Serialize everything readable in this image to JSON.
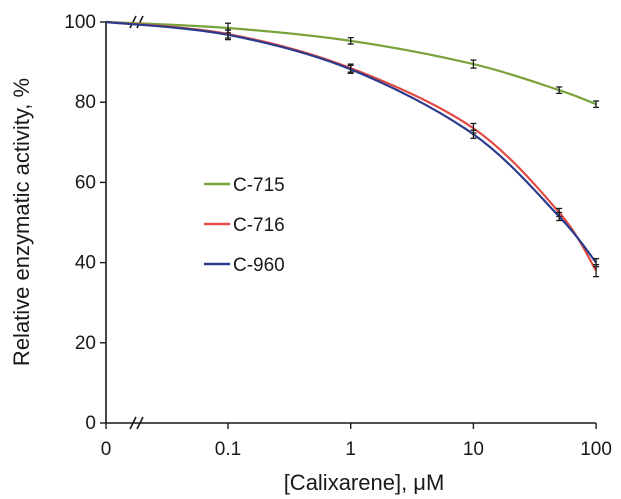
{
  "chart_data": {
    "type": "line",
    "xlabel": "[Calixarene], μM",
    "ylabel": "Relative enzymatic activity, %",
    "x_scale": "log, with 0 shown before an axis break",
    "x_ticks": [
      "0",
      "0.1",
      "1",
      "10",
      "100"
    ],
    "y_ticks": [
      "0",
      "20",
      "40",
      "60",
      "80",
      "100"
    ],
    "ylim": [
      0,
      100
    ],
    "x": [
      0,
      0.1,
      1,
      10,
      50,
      100
    ],
    "legend_position": "center-left",
    "series": [
      {
        "name": "C-715",
        "color": "#78a23a",
        "values": [
          100,
          98.5,
          95.3,
          89.5,
          83.0,
          79.5
        ],
        "errors": [
          0,
          1.2,
          0.8,
          1.0,
          0.8,
          0.8
        ]
      },
      {
        "name": "C-716",
        "color": "#e04a42",
        "values": [
          100,
          97.0,
          88.5,
          73.5,
          52.5,
          38.0
        ],
        "errors": [
          0,
          1.0,
          1.0,
          1.2,
          1.0,
          1.5
        ]
      },
      {
        "name": "C-960",
        "color": "#2c3a8c",
        "values": [
          100,
          96.8,
          88.2,
          72.0,
          51.5,
          40.0
        ],
        "errors": [
          0,
          1.2,
          1.0,
          1.0,
          1.0,
          1.0
        ]
      }
    ]
  }
}
